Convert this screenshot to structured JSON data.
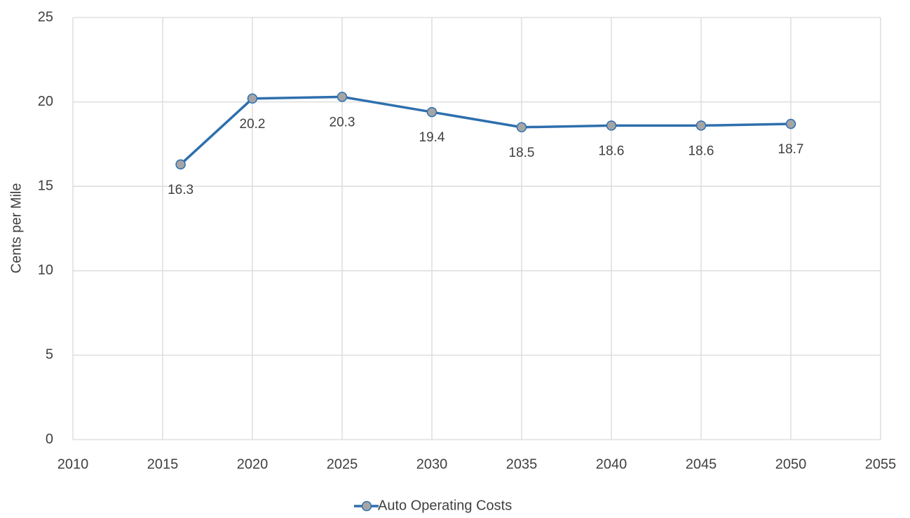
{
  "chart_data": {
    "type": "line",
    "y_label": "Cents per Mile",
    "x": [
      2016,
      2020,
      2025,
      2030,
      2035,
      2040,
      2045,
      2050
    ],
    "series": [
      {
        "name": "Auto Operating Costs",
        "color": "#2e6fad",
        "marker_color": "#a5a5a5",
        "values": [
          16.3,
          20.2,
          20.3,
          19.4,
          18.5,
          18.6,
          18.6,
          18.7
        ]
      }
    ],
    "xlim": [
      2010,
      2055
    ],
    "xticks": [
      2010,
      2015,
      2020,
      2025,
      2030,
      2035,
      2040,
      2045,
      2050,
      2055
    ],
    "ylim": [
      0,
      25
    ],
    "yticks": [
      0,
      5,
      10,
      15,
      20,
      25
    ],
    "grid": true,
    "legend": "bottom"
  }
}
